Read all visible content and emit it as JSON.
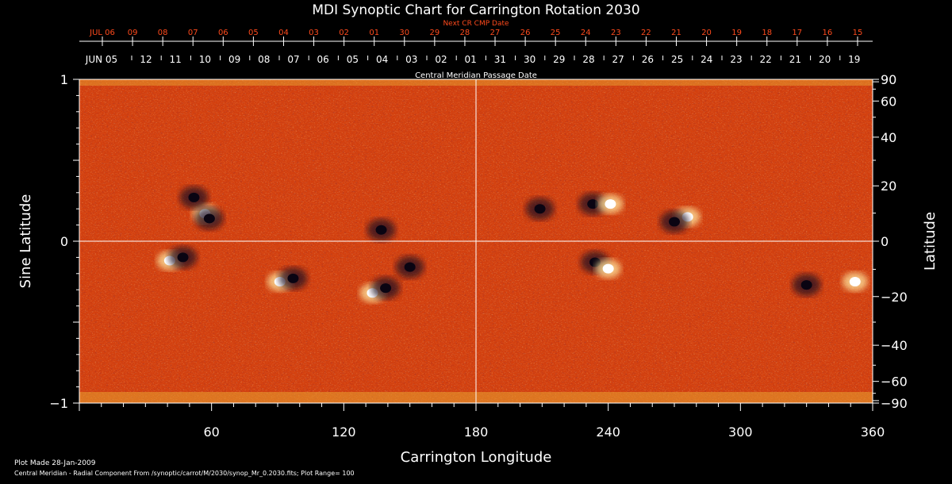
{
  "title": "MDI Synoptic Chart for Carrington Rotation 2030",
  "next_label": "Next CR CMP Date",
  "cmp_label": "Central Meridian Passage Date",
  "xlabel": "Carrington Longitude",
  "ylabel_left": "Sine Latitude",
  "ylabel_right": "Latitude",
  "footer_line1": "Plot Made 28-Jan-2009",
  "footer_line2": "Central Meridian - Radial Component From /synoptic/carrot/M/2030/synop_Mr_0.2030.fits; Plot Range=  100",
  "colors": {
    "background": "#000000",
    "map": "#d3400f",
    "next_dates": "#ff4a1c",
    "axes": "#ffffff"
  },
  "chart_data": {
    "type": "heatmap",
    "x_range": [
      0,
      360
    ],
    "y_range": [
      -1,
      1
    ],
    "x_ticks": [
      "60",
      "120",
      "180",
      "240",
      "300",
      "360"
    ],
    "x_tick_values": [
      60,
      120,
      180,
      240,
      300,
      360
    ],
    "y_left_ticks": [
      "1",
      "0",
      "−1"
    ],
    "y_left_values": [
      1,
      0,
      -1
    ],
    "y_right_ticks": [
      "90",
      "60",
      "40",
      "20",
      "0",
      "−20",
      "−40",
      "−60",
      "−90"
    ],
    "y_right_values": [
      90,
      60,
      40,
      20,
      0,
      -20,
      -40,
      -60,
      -90
    ],
    "cmp_dates": [
      "JUN 05",
      "12",
      "11",
      "10",
      "09",
      "08",
      "07",
      "06",
      "05",
      "04",
      "03",
      "02",
      "01",
      "31",
      "30",
      "29",
      "28",
      "27",
      "26",
      "25",
      "24",
      "23",
      "22",
      "21",
      "20",
      "19"
    ],
    "next_cr_dates": [
      "JUL 06",
      "09",
      "08",
      "07",
      "06",
      "05",
      "04",
      "03",
      "02",
      "01",
      "30",
      "29",
      "28",
      "27",
      "26",
      "25",
      "24",
      "23",
      "22",
      "21",
      "20",
      "19",
      "18",
      "17",
      "16",
      "15"
    ],
    "regions": [
      {
        "lon": 57,
        "sinlat": 0.17,
        "polarity": "positive"
      },
      {
        "lon": 52,
        "sinlat": 0.27,
        "polarity": "negative"
      },
      {
        "lon": 59,
        "sinlat": 0.14,
        "polarity": "negative"
      },
      {
        "lon": 41,
        "sinlat": -0.12,
        "polarity": "positive"
      },
      {
        "lon": 47,
        "sinlat": -0.1,
        "polarity": "negative"
      },
      {
        "lon": 91,
        "sinlat": -0.25,
        "polarity": "positive"
      },
      {
        "lon": 97,
        "sinlat": -0.23,
        "polarity": "negative"
      },
      {
        "lon": 133,
        "sinlat": -0.32,
        "polarity": "positive"
      },
      {
        "lon": 139,
        "sinlat": -0.29,
        "polarity": "negative"
      },
      {
        "lon": 150,
        "sinlat": -0.16,
        "polarity": "negative"
      },
      {
        "lon": 137,
        "sinlat": 0.07,
        "polarity": "negative"
      },
      {
        "lon": 209,
        "sinlat": 0.2,
        "polarity": "negative"
      },
      {
        "lon": 233,
        "sinlat": 0.23,
        "polarity": "negative"
      },
      {
        "lon": 241,
        "sinlat": 0.23,
        "polarity": "positive"
      },
      {
        "lon": 234,
        "sinlat": -0.13,
        "polarity": "negative"
      },
      {
        "lon": 240,
        "sinlat": -0.17,
        "polarity": "positive"
      },
      {
        "lon": 276,
        "sinlat": 0.15,
        "polarity": "positive"
      },
      {
        "lon": 270,
        "sinlat": 0.12,
        "polarity": "negative"
      },
      {
        "lon": 352,
        "sinlat": -0.25,
        "polarity": "positive"
      },
      {
        "lon": 330,
        "sinlat": -0.27,
        "polarity": "negative"
      }
    ]
  }
}
